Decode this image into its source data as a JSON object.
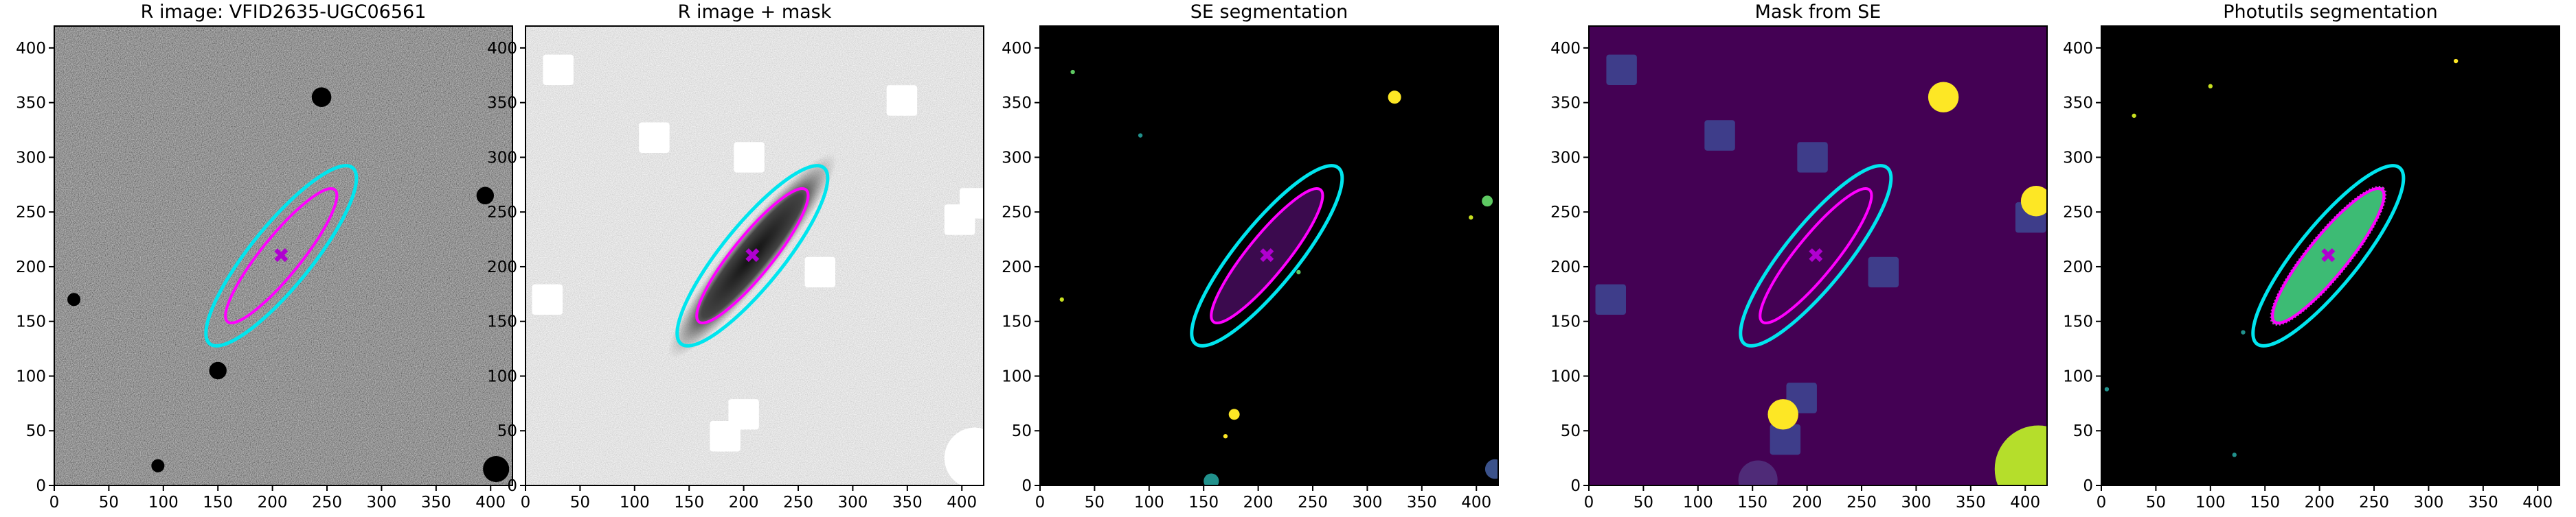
{
  "chart_data": [
    {
      "type": "image",
      "title": "R image: VFID2635-UGC06561",
      "xlim": [
        0,
        420
      ],
      "ylim": [
        0,
        420
      ],
      "xticks": [
        0,
        50,
        100,
        150,
        200,
        250,
        300,
        350,
        400
      ],
      "yticks": [
        0,
        50,
        100,
        150,
        200,
        250,
        300,
        350,
        400
      ]
    },
    {
      "type": "image",
      "title": "R image + mask",
      "xlim": [
        0,
        420
      ],
      "ylim": [
        0,
        420
      ],
      "xticks": [
        0,
        50,
        100,
        150,
        200,
        250,
        300,
        350,
        400
      ],
      "yticks": [
        0,
        50,
        100,
        150,
        200,
        250,
        300,
        350,
        400
      ]
    },
    {
      "type": "image",
      "title": "SE segmentation",
      "xlim": [
        0,
        420
      ],
      "ylim": [
        0,
        420
      ],
      "xticks": [
        0,
        50,
        100,
        150,
        200,
        250,
        300,
        350,
        400
      ],
      "yticks": [
        0,
        50,
        100,
        150,
        200,
        250,
        300,
        350,
        400
      ]
    },
    {
      "type": "image",
      "title": "Mask from SE",
      "xlim": [
        0,
        420
      ],
      "ylim": [
        0,
        420
      ],
      "xticks": [
        0,
        50,
        100,
        150,
        200,
        250,
        300,
        350,
        400
      ],
      "yticks": [
        0,
        50,
        100,
        150,
        200,
        250,
        300,
        350,
        400
      ]
    },
    {
      "type": "image",
      "title": "Photutils segmentation",
      "xlim": [
        0,
        420
      ],
      "ylim": [
        0,
        420
      ],
      "xticks": [
        0,
        50,
        100,
        150,
        200,
        250,
        300,
        350,
        400
      ],
      "yticks": [
        0,
        50,
        100,
        150,
        200,
        250,
        300,
        350,
        400
      ]
    }
  ]
}
